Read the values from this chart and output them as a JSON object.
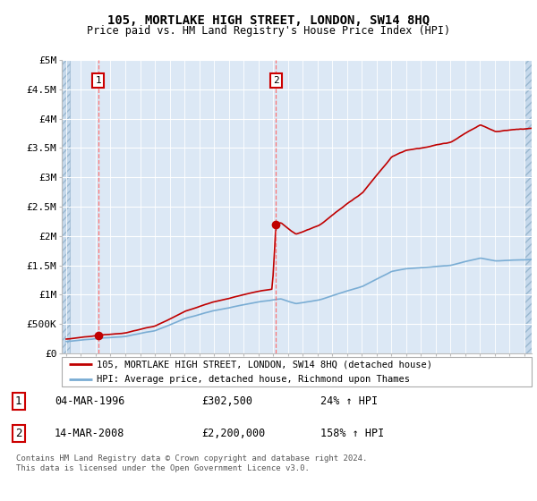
{
  "title": "105, MORTLAKE HIGH STREET, LONDON, SW14 8HQ",
  "subtitle": "Price paid vs. HM Land Registry's House Price Index (HPI)",
  "background_color": "#dce8f5",
  "hatch_color": "#c5d8eb",
  "sale1_date": 1996.17,
  "sale1_price": 302500,
  "sale1_label": "1",
  "sale2_date": 2008.2,
  "sale2_price": 2200000,
  "sale2_label": "2",
  "legend_line1": "105, MORTLAKE HIGH STREET, LONDON, SW14 8HQ (detached house)",
  "legend_line2": "HPI: Average price, detached house, Richmond upon Thames",
  "ann1_date": "04-MAR-1996",
  "ann1_price": "£302,500",
  "ann1_hpi": "24% ↑ HPI",
  "ann2_date": "14-MAR-2008",
  "ann2_price": "£2,200,000",
  "ann2_hpi": "158% ↑ HPI",
  "footer": "Contains HM Land Registry data © Crown copyright and database right 2024.\nThis data is licensed under the Open Government Licence v3.0.",
  "ylim": [
    0,
    5000000
  ],
  "yticks": [
    0,
    500000,
    1000000,
    1500000,
    2000000,
    2500000,
    3000000,
    3500000,
    4000000,
    4500000,
    5000000
  ],
  "ytick_labels": [
    "£0",
    "£500K",
    "£1M",
    "£1.5M",
    "£2M",
    "£2.5M",
    "£3M",
    "£3.5M",
    "£4M",
    "£4.5M",
    "£5M"
  ],
  "hpi_color": "#7aadd4",
  "price_color": "#c00000",
  "marker_color": "#c00000",
  "xmin": 1994.0,
  "xmax": 2025.5
}
